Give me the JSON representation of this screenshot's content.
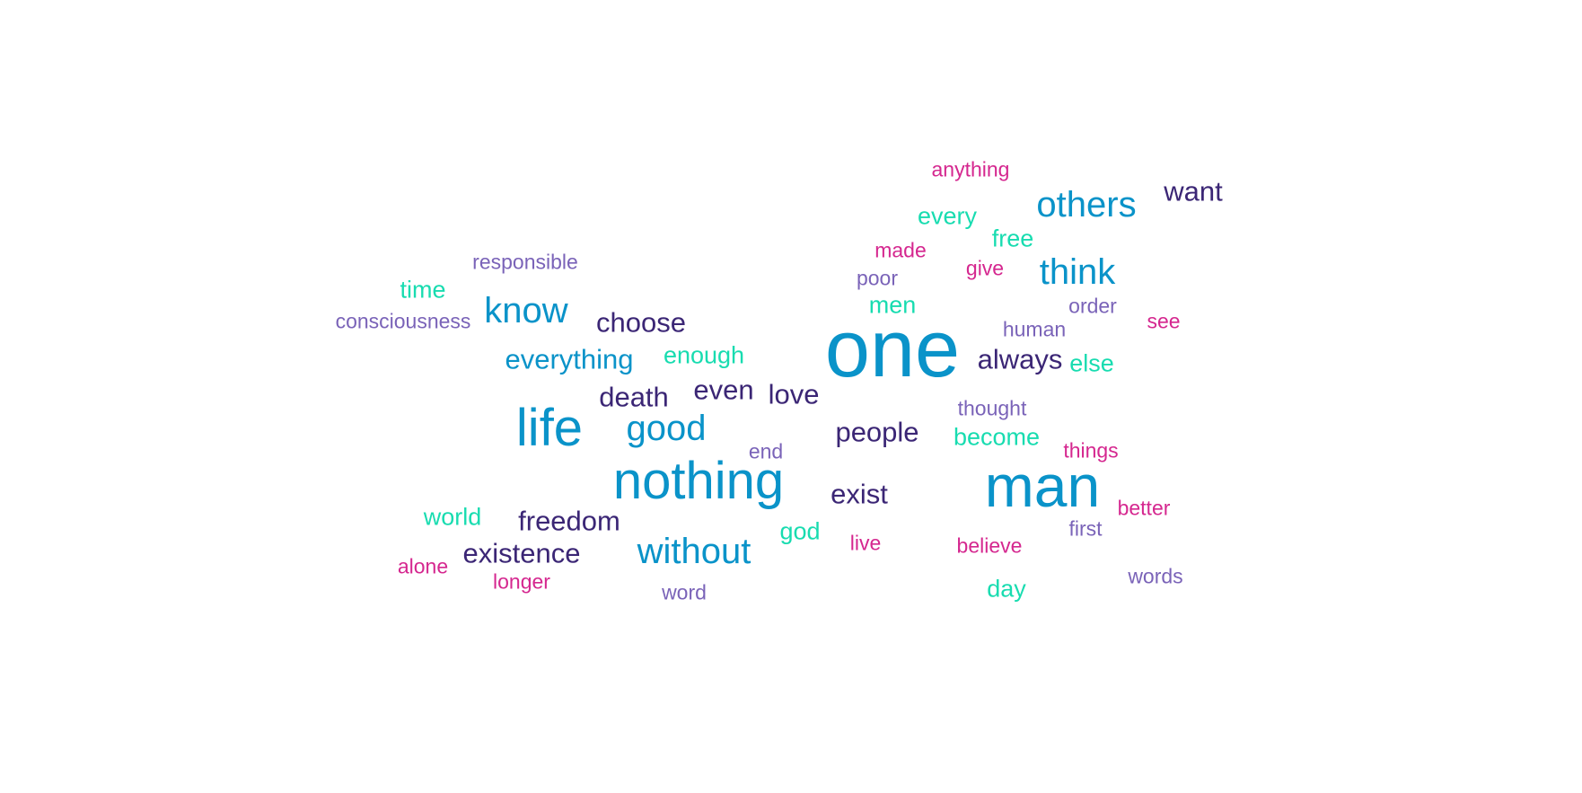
{
  "colors": {
    "blue": "#0a93c9",
    "navy": "#3b2675",
    "teal": "#18dcb0",
    "magenta": "#d5278f",
    "lavender": "#7a63b8"
  },
  "words": [
    {
      "text": "one",
      "color": "blue"
    },
    {
      "text": "man",
      "color": "blue"
    },
    {
      "text": "nothing",
      "color": "blue"
    },
    {
      "text": "life",
      "color": "blue"
    },
    {
      "text": "without",
      "color": "blue"
    },
    {
      "text": "think",
      "color": "blue"
    },
    {
      "text": "others",
      "color": "blue"
    },
    {
      "text": "good",
      "color": "blue"
    },
    {
      "text": "know",
      "color": "blue"
    },
    {
      "text": "everything",
      "color": "blue"
    },
    {
      "text": "exist",
      "color": "navy"
    },
    {
      "text": "love",
      "color": "navy"
    },
    {
      "text": "death",
      "color": "navy"
    },
    {
      "text": "even",
      "color": "navy"
    },
    {
      "text": "freedom",
      "color": "navy"
    },
    {
      "text": "people",
      "color": "navy"
    },
    {
      "text": "want",
      "color": "navy"
    },
    {
      "text": "choose",
      "color": "navy"
    },
    {
      "text": "always",
      "color": "navy"
    },
    {
      "text": "existence",
      "color": "navy"
    },
    {
      "text": "time",
      "color": "teal"
    },
    {
      "text": "every",
      "color": "teal"
    },
    {
      "text": "free",
      "color": "teal"
    },
    {
      "text": "men",
      "color": "teal"
    },
    {
      "text": "enough",
      "color": "teal"
    },
    {
      "text": "else",
      "color": "teal"
    },
    {
      "text": "become",
      "color": "teal"
    },
    {
      "text": "world",
      "color": "teal"
    },
    {
      "text": "god",
      "color": "teal"
    },
    {
      "text": "day",
      "color": "teal"
    },
    {
      "text": "anything",
      "color": "magenta"
    },
    {
      "text": "made",
      "color": "magenta"
    },
    {
      "text": "give",
      "color": "magenta"
    },
    {
      "text": "see",
      "color": "magenta"
    },
    {
      "text": "things",
      "color": "magenta"
    },
    {
      "text": "better",
      "color": "magenta"
    },
    {
      "text": "live",
      "color": "magenta"
    },
    {
      "text": "believe",
      "color": "magenta"
    },
    {
      "text": "alone",
      "color": "magenta"
    },
    {
      "text": "longer",
      "color": "magenta"
    },
    {
      "text": "responsible",
      "color": "lavender"
    },
    {
      "text": "consciousness",
      "color": "lavender"
    },
    {
      "text": "poor",
      "color": "lavender"
    },
    {
      "text": "order",
      "color": "lavender"
    },
    {
      "text": "human",
      "color": "lavender"
    },
    {
      "text": "thought",
      "color": "lavender"
    },
    {
      "text": "end",
      "color": "lavender"
    },
    {
      "text": "first",
      "color": "lavender"
    },
    {
      "text": "words",
      "color": "lavender"
    },
    {
      "text": "word",
      "color": "lavender"
    }
  ]
}
